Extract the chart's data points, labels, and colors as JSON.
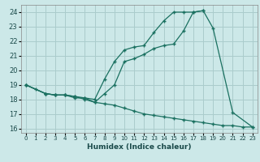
{
  "xlabel": "Humidex (Indice chaleur)",
  "background_color": "#cce8e8",
  "grid_color": "#aacccc",
  "line_color": "#1a7060",
  "xlim": [
    -0.5,
    23.5
  ],
  "ylim": [
    15.7,
    24.5
  ],
  "xticks": [
    0,
    1,
    2,
    3,
    4,
    5,
    6,
    7,
    8,
    9,
    10,
    11,
    12,
    13,
    14,
    15,
    16,
    17,
    18,
    19,
    20,
    21,
    22,
    23
  ],
  "yticks": [
    16,
    17,
    18,
    19,
    20,
    21,
    22,
    23,
    24
  ],
  "line1_x": [
    0,
    1,
    2,
    3,
    4,
    5,
    6,
    7,
    8,
    9,
    10,
    11,
    12,
    13,
    14,
    15,
    16,
    17,
    18,
    19,
    21,
    23
  ],
  "line1_y": [
    19.0,
    18.7,
    18.4,
    18.3,
    18.3,
    18.1,
    18.1,
    17.8,
    18.4,
    19.0,
    20.6,
    20.8,
    21.1,
    21.5,
    21.7,
    21.8,
    22.7,
    24.0,
    24.1,
    22.9,
    17.1,
    16.1
  ],
  "line2_x": [
    0,
    2,
    3,
    4,
    5,
    6,
    7,
    8,
    9,
    10,
    11,
    12,
    13,
    14,
    15,
    16,
    17,
    18
  ],
  "line2_y": [
    19.0,
    18.4,
    18.3,
    18.3,
    18.2,
    18.1,
    18.0,
    19.4,
    20.6,
    21.4,
    21.6,
    21.7,
    22.6,
    23.4,
    24.0,
    24.0,
    24.0,
    24.1
  ],
  "line3_x": [
    0,
    2,
    3,
    4,
    5,
    6,
    7,
    8,
    9,
    10,
    11,
    12,
    13,
    14,
    15,
    16,
    17,
    18,
    19,
    20,
    21,
    22,
    23
  ],
  "line3_y": [
    19.0,
    18.4,
    18.3,
    18.3,
    18.2,
    18.0,
    17.8,
    17.7,
    17.6,
    17.4,
    17.2,
    17.0,
    16.9,
    16.8,
    16.7,
    16.6,
    16.5,
    16.4,
    16.3,
    16.2,
    16.2,
    16.1,
    16.1
  ]
}
